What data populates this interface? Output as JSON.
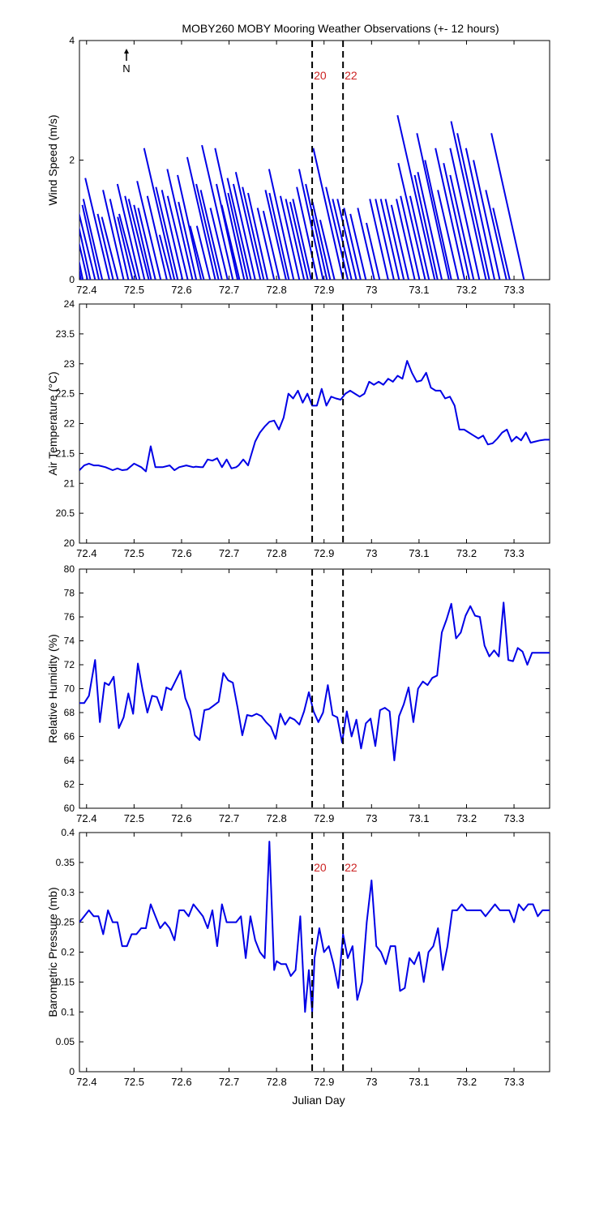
{
  "title": "MOBY260 MOBY Mooring Weather Observations (+- 12 hours)",
  "xlabel": "Julian Day",
  "x_ticks": [
    72.4,
    72.5,
    72.6,
    72.7,
    72.8,
    72.9,
    73,
    73.1,
    73.2,
    73.3
  ],
  "x_tick_labels": [
    "72.4",
    "72.5",
    "72.6",
    "72.7",
    "72.8",
    "72.9",
    "73",
    "73.1",
    "73.2",
    "73.3"
  ],
  "xlim": [
    72.385,
    73.375
  ],
  "markers": [
    {
      "x": 72.875,
      "label": "20"
    },
    {
      "x": 72.94,
      "label": "22"
    }
  ],
  "north_label": "N",
  "colors": {
    "series": "#0000e6",
    "marker_label": "#cc2222",
    "axes": "#000000"
  },
  "chart_data": [
    {
      "type": "line",
      "subtype": "wind-stick",
      "ylabel": "Wind Speed (m/s)",
      "ylim": [
        0,
        4
      ],
      "y_ticks": [
        0,
        2,
        4
      ],
      "y_tick_labels": [
        "0",
        "2",
        "4"
      ],
      "show_marker_labels": true,
      "show_north_arrow": true,
      "sticks": [
        {
          "x": 72.388,
          "u": -0.01,
          "v": 1.55
        },
        {
          "x": 72.392,
          "u": 0.02,
          "v": 1.35
        },
        {
          "x": 72.402,
          "u": 0.09,
          "v": 2.05
        },
        {
          "x": 72.408,
          "u": 0.05,
          "v": 1.7
        },
        {
          "x": 72.418,
          "u": 0.07,
          "v": 1.3
        },
        {
          "x": 72.426,
          "u": 0.04,
          "v": 1.25
        },
        {
          "x": 72.433,
          "u": 0.06,
          "v": 1.35
        },
        {
          "x": 72.448,
          "u": 0.08,
          "v": 1.7
        },
        {
          "x": 72.456,
          "u": 0.05,
          "v": 1.1
        },
        {
          "x": 72.466,
          "u": 0.07,
          "v": 1.05
        },
        {
          "x": 72.478,
          "u": 0.06,
          "v": 1.5
        },
        {
          "x": 72.488,
          "u": 0.05,
          "v": 1.35
        },
        {
          "x": 72.497,
          "u": 0.05,
          "v": 1.05
        },
        {
          "x": 72.505,
          "u": 0.08,
          "v": 1.1
        },
        {
          "x": 72.512,
          "u": 0.07,
          "v": 1.6
        },
        {
          "x": 72.522,
          "u": 0.06,
          "v": 1.4
        },
        {
          "x": 72.531,
          "u": 0.08,
          "v": 1.35
        },
        {
          "x": 72.536,
          "u": 0.05,
          "v": 1.25
        },
        {
          "x": 72.545,
          "u": 0.06,
          "v": 1.2
        },
        {
          "x": 72.556,
          "u": 0.08,
          "v": 1.65
        },
        {
          "x": 72.569,
          "u": 0.06,
          "v": 1.4
        },
        {
          "x": 72.578,
          "u": 0.05,
          "v": 0.75
        },
        {
          "x": 72.585,
          "u": 0.09,
          "v": 2.2
        },
        {
          "x": 72.592,
          "u": 0.07,
          "v": 1.55
        },
        {
          "x": 72.602,
          "u": 0.06,
          "v": 1.5
        },
        {
          "x": 72.613,
          "u": 0.07,
          "v": 1.4
        },
        {
          "x": 72.623,
          "u": 0.07,
          "v": 1.85
        },
        {
          "x": 72.631,
          "u": 0.05,
          "v": 1.3
        },
        {
          "x": 72.641,
          "u": 0.06,
          "v": 1.75
        },
        {
          "x": 72.647,
          "u": 0.06,
          "v": 0.9
        },
        {
          "x": 72.66,
          "u": 0.05,
          "v": 0.9
        },
        {
          "x": 72.671,
          "u": 0.08,
          "v": 2.05
        },
        {
          "x": 72.678,
          "u": 0.07,
          "v": 1.6
        },
        {
          "x": 72.685,
          "u": 0.07,
          "v": 1.5
        },
        {
          "x": 72.697,
          "u": 0.06,
          "v": 1.2
        },
        {
          "x": 72.708,
          "u": 0.09,
          "v": 2.25
        },
        {
          "x": 72.718,
          "u": 0.05,
          "v": 1.6
        },
        {
          "x": 72.722,
          "u": 0.06,
          "v": 1.25
        },
        {
          "x": 72.732,
          "u": 0.07,
          "v": 2.2
        },
        {
          "x": 72.739,
          "u": 0.05,
          "v": 1.45
        },
        {
          "x": 72.746,
          "u": 0.07,
          "v": 1.7
        },
        {
          "x": 72.755,
          "u": 0.06,
          "v": 1.6
        },
        {
          "x": 72.766,
          "u": 0.07,
          "v": 1.8
        },
        {
          "x": 72.773,
          "u": 0.06,
          "v": 1.55
        },
        {
          "x": 72.781,
          "u": 0.05,
          "v": 1.45
        },
        {
          "x": 72.795,
          "u": 0.05,
          "v": 1.2
        },
        {
          "x": 72.806,
          "u": 0.05,
          "v": 1.15
        },
        {
          "x": 72.82,
          "u": 0.06,
          "v": 1.5
        },
        {
          "x": 72.826,
          "u": 0.05,
          "v": 1.45
        },
        {
          "x": 72.836,
          "u": 0.06,
          "v": 1.85
        },
        {
          "x": 72.848,
          "u": 0.05,
          "v": 1.4
        },
        {
          "x": 72.858,
          "u": 0.05,
          "v": 1.35
        },
        {
          "x": 72.866,
          "u": 0.05,
          "v": 1.3
        },
        {
          "x": 72.873,
          "u": 0.05,
          "v": 1.35
        },
        {
          "x": 72.886,
          "u": 0.05,
          "v": 1.55
        },
        {
          "x": 72.898,
          "u": 0.05,
          "v": 1.85
        },
        {
          "x": 72.906,
          "u": 0.05,
          "v": 1.6
        },
        {
          "x": 72.913,
          "u": 0.05,
          "v": 1.3
        },
        {
          "x": 72.922,
          "u": 0.05,
          "v": 1.0
        },
        {
          "x": 72.94,
          "u": 0.08,
          "v": 2.2
        },
        {
          "x": 72.95,
          "u": 0.07,
          "v": 1.55
        },
        {
          "x": 72.958,
          "u": 0.06,
          "v": 1.35
        },
        {
          "x": 72.968,
          "u": 0.06,
          "v": 1.35
        },
        {
          "x": 72.977,
          "u": 0.05,
          "v": 1.2
        },
        {
          "x": 72.988,
          "u": 0.05,
          "v": 1.1
        },
        {
          "x": 73.006,
          "u": 0.05,
          "v": 1.2
        },
        {
          "x": 73.017,
          "u": 0.04,
          "v": 0.95
        },
        {
          "x": 73.035,
          "u": 0.05,
          "v": 1.35
        },
        {
          "x": 73.047,
          "u": 0.05,
          "v": 1.35
        },
        {
          "x": 73.058,
          "u": 0.05,
          "v": 1.35
        },
        {
          "x": 73.068,
          "u": 0.05,
          "v": 1.35
        },
        {
          "x": 73.078,
          "u": 0.05,
          "v": 1.25
        },
        {
          "x": 73.091,
          "u": 0.05,
          "v": 1.35
        },
        {
          "x": 73.101,
          "u": 0.05,
          "v": 1.4
        },
        {
          "x": 73.113,
          "u": 0.08,
          "v": 1.95
        },
        {
          "x": 73.121,
          "u": 0.05,
          "v": 1.4
        },
        {
          "x": 73.133,
          "u": 0.1,
          "v": 2.75
        },
        {
          "x": 73.139,
          "u": 0.05,
          "v": 1.75
        },
        {
          "x": 73.148,
          "u": 0.06,
          "v": 1.8
        },
        {
          "x": 73.163,
          "u": 0.07,
          "v": 2.45
        },
        {
          "x": 73.168,
          "u": 0.06,
          "v": 2.0
        },
        {
          "x": 73.183,
          "u": 0.06,
          "v": 1.5
        },
        {
          "x": 73.196,
          "u": 0.07,
          "v": 2.2
        },
        {
          "x": 73.206,
          "u": 0.06,
          "v": 1.95
        },
        {
          "x": 73.215,
          "u": 0.06,
          "v": 1.75
        },
        {
          "x": 73.227,
          "u": 0.07,
          "v": 2.2
        },
        {
          "x": 73.241,
          "u": 0.08,
          "v": 2.65
        },
        {
          "x": 73.248,
          "u": 0.07,
          "v": 2.45
        },
        {
          "x": 73.259,
          "u": 0.06,
          "v": 2.2
        },
        {
          "x": 73.27,
          "u": 0.06,
          "v": 2.0
        },
        {
          "x": 73.284,
          "u": 0.06,
          "v": 1.5
        },
        {
          "x": 73.291,
          "u": 0.05,
          "v": 1.2
        },
        {
          "x": 73.321,
          "u": 0.08,
          "v": 2.45
        }
      ]
    },
    {
      "type": "line",
      "ylabel": "Air Temperature (°C)",
      "ylim": [
        20,
        24
      ],
      "y_ticks": [
        20,
        20.5,
        21,
        21.5,
        22,
        22.5,
        23,
        23.5,
        24
      ],
      "y_tick_labels": [
        "20",
        "20.5",
        "21",
        "21.5",
        "22",
        "22.5",
        "23",
        "23.5",
        "24"
      ],
      "show_marker_labels": false,
      "x": [
        72.385,
        72.395,
        72.405,
        72.415,
        72.425,
        72.44,
        72.455,
        72.465,
        72.475,
        72.485,
        72.5,
        72.515,
        72.525,
        72.535,
        72.545,
        72.56,
        72.575,
        72.585,
        72.595,
        72.61,
        72.625,
        72.63,
        72.64,
        72.645,
        72.655,
        72.665,
        72.675,
        72.685,
        72.695,
        72.705,
        72.715,
        72.72,
        72.73,
        72.74,
        72.755,
        72.765,
        72.775,
        72.785,
        72.795,
        72.805,
        72.815,
        72.825,
        72.835,
        72.845,
        72.855,
        72.865,
        72.875,
        72.885,
        72.895,
        72.905,
        72.915,
        72.925,
        72.935,
        72.945,
        72.955,
        72.965,
        72.975,
        72.985,
        72.995,
        73.005,
        73.015,
        73.025,
        73.035,
        73.045,
        73.055,
        73.065,
        73.075,
        73.085,
        73.095,
        73.105,
        73.115,
        73.125,
        73.135,
        73.145,
        73.155,
        73.165,
        73.175,
        73.185,
        73.195,
        73.205,
        73.215,
        73.225,
        73.235,
        73.245,
        73.255,
        73.265,
        73.275,
        73.285,
        73.295,
        73.305,
        73.315,
        73.325,
        73.335,
        73.345,
        73.355,
        73.365,
        73.375
      ],
      "y": [
        21.22,
        21.3,
        21.33,
        21.3,
        21.3,
        21.27,
        21.22,
        21.25,
        21.22,
        21.23,
        21.33,
        21.27,
        21.2,
        21.62,
        21.27,
        21.27,
        21.3,
        21.22,
        21.27,
        21.3,
        21.27,
        21.28,
        21.27,
        21.27,
        21.4,
        21.38,
        21.42,
        21.27,
        21.4,
        21.25,
        21.27,
        21.3,
        21.4,
        21.3,
        21.7,
        21.85,
        21.95,
        22.03,
        22.05,
        21.9,
        22.1,
        22.5,
        22.42,
        22.55,
        22.35,
        22.5,
        22.3,
        22.3,
        22.58,
        22.3,
        22.45,
        22.42,
        22.4,
        22.5,
        22.55,
        22.5,
        22.45,
        22.5,
        22.7,
        22.65,
        22.7,
        22.65,
        22.75,
        22.7,
        22.8,
        22.75,
        23.05,
        22.85,
        22.7,
        22.72,
        22.85,
        22.6,
        22.55,
        22.55,
        22.42,
        22.45,
        22.3,
        21.9,
        21.9,
        21.85,
        21.8,
        21.75,
        21.8,
        21.65,
        21.67,
        21.75,
        21.85,
        21.9,
        21.7,
        21.78,
        21.72,
        21.85,
        21.68,
        21.7,
        21.72,
        21.73,
        21.73
      ]
    },
    {
      "type": "line",
      "ylabel": "Relative Humidity (%)",
      "ylim": [
        60,
        80
      ],
      "y_ticks": [
        60,
        62,
        64,
        66,
        68,
        70,
        72,
        74,
        76,
        78,
        80
      ],
      "y_tick_labels": [
        "60",
        "62",
        "64",
        "66",
        "68",
        "70",
        "72",
        "74",
        "76",
        "78",
        "80"
      ],
      "show_marker_labels": false,
      "x": [
        72.385,
        72.395,
        72.405,
        72.418,
        72.428,
        72.438,
        72.447,
        72.457,
        72.468,
        72.478,
        72.488,
        72.498,
        72.508,
        72.518,
        72.528,
        72.538,
        72.548,
        72.558,
        72.568,
        72.578,
        72.588,
        72.598,
        72.608,
        72.618,
        72.628,
        72.638,
        72.648,
        72.658,
        72.668,
        72.678,
        72.688,
        72.698,
        72.708,
        72.718,
        72.728,
        72.738,
        72.748,
        72.758,
        72.768,
        72.778,
        72.788,
        72.798,
        72.808,
        72.818,
        72.828,
        72.838,
        72.848,
        72.858,
        72.868,
        72.878,
        72.888,
        72.898,
        72.908,
        72.918,
        72.928,
        72.938,
        72.948,
        72.958,
        72.968,
        72.978,
        72.988,
        72.998,
        73.008,
        73.018,
        73.028,
        73.038,
        73.048,
        73.058,
        73.068,
        73.078,
        73.088,
        73.098,
        73.108,
        73.118,
        73.128,
        73.138,
        73.148,
        73.158,
        73.168,
        73.178,
        73.188,
        73.198,
        73.208,
        73.218,
        73.228,
        73.238,
        73.248,
        73.258,
        73.268,
        73.278,
        73.288,
        73.298,
        73.308,
        73.318,
        73.328,
        73.338,
        73.348,
        73.358,
        73.368,
        73.375
      ],
      "y": [
        68.8,
        68.8,
        69.4,
        72.4,
        67.2,
        70.5,
        70.3,
        71.0,
        66.7,
        67.6,
        69.6,
        67.9,
        72.1,
        69.9,
        68.0,
        69.4,
        69.3,
        68.2,
        70.1,
        69.9,
        70.7,
        71.5,
        69.2,
        68.2,
        66.1,
        65.7,
        68.2,
        68.3,
        68.6,
        68.9,
        71.3,
        70.7,
        70.5,
        68.4,
        66.1,
        67.8,
        67.7,
        67.9,
        67.7,
        67.2,
        66.8,
        65.8,
        67.9,
        67.0,
        67.6,
        67.4,
        67.0,
        68.1,
        69.7,
        68.1,
        67.2,
        68.0,
        70.3,
        67.8,
        67.6,
        65.5,
        68.1,
        66.0,
        67.4,
        65.0,
        67.1,
        67.5,
        65.2,
        68.2,
        68.4,
        68.1,
        64.0,
        67.7,
        68.7,
        70.1,
        67.2,
        70.0,
        70.6,
        70.3,
        70.9,
        71.1,
        74.7,
        75.8,
        77.1,
        74.2,
        74.7,
        76.1,
        76.9,
        76.1,
        76.0,
        73.6,
        72.7,
        73.2,
        72.7,
        77.2,
        72.4,
        72.3,
        73.4,
        73.1,
        72.0,
        73.0,
        73.0,
        73.0,
        73.0,
        73.0
      ]
    },
    {
      "type": "line",
      "ylabel": "Barometric Pressure (mb)",
      "ylim": [
        0,
        0.4
      ],
      "y_ticks": [
        0,
        0.05,
        0.1,
        0.15,
        0.2,
        0.25,
        0.3,
        0.35,
        0.4
      ],
      "y_tick_labels": [
        "0",
        "0.05",
        "0.1",
        "0.15",
        "0.2",
        "0.25",
        "0.3",
        "0.35",
        "0.4"
      ],
      "show_marker_labels": true,
      "x": [
        72.385,
        72.395,
        72.405,
        72.415,
        72.425,
        72.435,
        72.445,
        72.455,
        72.465,
        72.475,
        72.485,
        72.495,
        72.505,
        72.515,
        72.525,
        72.535,
        72.545,
        72.555,
        72.565,
        72.575,
        72.585,
        72.595,
        72.605,
        72.615,
        72.625,
        72.635,
        72.645,
        72.655,
        72.665,
        72.675,
        72.685,
        72.695,
        72.705,
        72.715,
        72.725,
        72.735,
        72.745,
        72.755,
        72.765,
        72.775,
        72.785,
        72.795,
        72.8,
        72.81,
        72.82,
        72.83,
        72.84,
        72.85,
        72.86,
        72.868,
        72.875,
        72.88,
        72.89,
        72.9,
        72.91,
        72.92,
        72.93,
        72.94,
        72.95,
        72.96,
        72.97,
        72.98,
        72.99,
        73.0,
        73.01,
        73.02,
        73.03,
        73.04,
        73.05,
        73.06,
        73.07,
        73.08,
        73.09,
        73.1,
        73.11,
        73.12,
        73.13,
        73.14,
        73.15,
        73.16,
        73.17,
        73.18,
        73.19,
        73.2,
        73.21,
        73.22,
        73.23,
        73.24,
        73.25,
        73.26,
        73.27,
        73.28,
        73.29,
        73.3,
        73.31,
        73.32,
        73.33,
        73.34,
        73.35,
        73.36,
        73.37,
        73.375
      ],
      "y": [
        0.25,
        0.26,
        0.27,
        0.26,
        0.26,
        0.23,
        0.27,
        0.25,
        0.25,
        0.21,
        0.21,
        0.23,
        0.23,
        0.24,
        0.24,
        0.28,
        0.26,
        0.24,
        0.25,
        0.24,
        0.22,
        0.27,
        0.27,
        0.26,
        0.28,
        0.27,
        0.26,
        0.24,
        0.27,
        0.21,
        0.28,
        0.25,
        0.25,
        0.25,
        0.26,
        0.19,
        0.26,
        0.22,
        0.2,
        0.19,
        0.385,
        0.17,
        0.185,
        0.18,
        0.18,
        0.16,
        0.17,
        0.26,
        0.1,
        0.17,
        0.1,
        0.19,
        0.24,
        0.2,
        0.21,
        0.18,
        0.14,
        0.23,
        0.19,
        0.21,
        0.12,
        0.15,
        0.25,
        0.32,
        0.21,
        0.2,
        0.18,
        0.21,
        0.21,
        0.135,
        0.14,
        0.19,
        0.18,
        0.2,
        0.15,
        0.2,
        0.21,
        0.24,
        0.17,
        0.21,
        0.27,
        0.27,
        0.28,
        0.27,
        0.27,
        0.27,
        0.27,
        0.26,
        0.27,
        0.28,
        0.27,
        0.27,
        0.27,
        0.25,
        0.28,
        0.27,
        0.28,
        0.28,
        0.26,
        0.27,
        0.27,
        0.27
      ]
    }
  ]
}
